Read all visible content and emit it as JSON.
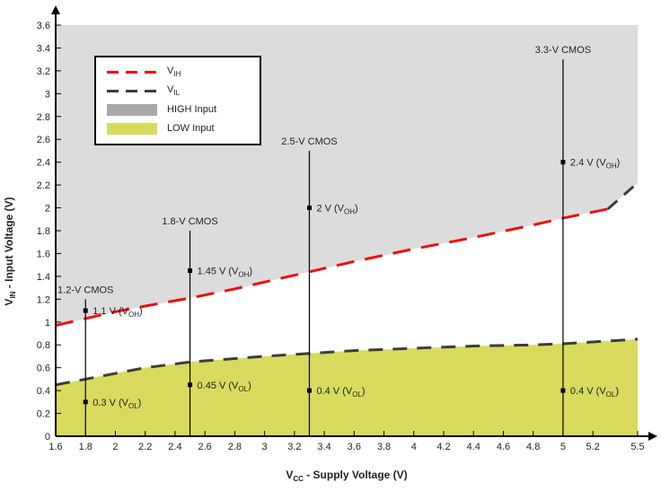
{
  "chart_data": {
    "type": "line",
    "xlabel": {
      "prefix": "V",
      "sub": "CC",
      "suffix": " - Supply Voltage (V)"
    },
    "ylabel": {
      "prefix": "V",
      "sub": "IN",
      "suffix": " - Input Voltage (V)"
    },
    "xlim": [
      1.6,
      5.5
    ],
    "ylim": [
      0,
      3.6
    ],
    "xtick_labels": [
      "1.6",
      "1.8",
      "2",
      "2.2",
      "2.4",
      "2.6",
      "2.8",
      "3",
      "3.2",
      "3.4",
      "3.6",
      "3.8",
      "4",
      "4.2",
      "4.4",
      "4.6",
      "4.8",
      "5",
      "5.2",
      "5.5"
    ],
    "ytick_labels": [
      "0",
      "0.2",
      "0.4",
      "0.6",
      "0.8",
      "1",
      "1.2",
      "1.4",
      "1.6",
      "1.8",
      "2",
      "2.2",
      "2.4",
      "2.6",
      "2.8",
      "3",
      "3.2",
      "3.4",
      "3.6"
    ],
    "series": [
      {
        "name": "VIH",
        "label": {
          "prefix": "V",
          "sub": "IH",
          "suffix": ""
        },
        "color": "#ee0f0f",
        "dash": "20 12",
        "points": [
          [
            1.6,
            0.97
          ],
          [
            1.8,
            1.03
          ],
          [
            2.0,
            1.09
          ],
          [
            2.2,
            1.14
          ],
          [
            2.5,
            1.21
          ],
          [
            2.8,
            1.29
          ],
          [
            3.0,
            1.35
          ],
          [
            3.3,
            1.44
          ],
          [
            3.6,
            1.53
          ],
          [
            4.0,
            1.64
          ],
          [
            4.4,
            1.74
          ],
          [
            4.8,
            1.85
          ],
          [
            5.0,
            1.91
          ],
          [
            5.3,
            1.99
          ]
        ]
      },
      {
        "name": "VIL",
        "label": {
          "prefix": "V",
          "sub": "IL",
          "suffix": ""
        },
        "color": "#3d3d3d",
        "dash": "16 11",
        "points": [
          [
            1.6,
            0.45
          ],
          [
            1.8,
            0.5
          ],
          [
            2.0,
            0.55
          ],
          [
            2.2,
            0.6
          ],
          [
            2.5,
            0.65
          ],
          [
            2.8,
            0.68
          ],
          [
            3.0,
            0.7
          ],
          [
            3.3,
            0.725
          ],
          [
            3.6,
            0.75
          ],
          [
            4.0,
            0.77
          ],
          [
            4.4,
            0.79
          ],
          [
            4.8,
            0.8
          ],
          [
            5.0,
            0.81
          ],
          [
            5.5,
            0.85
          ]
        ]
      }
    ],
    "vih_upper_extension": {
      "color": "#3d3d3d",
      "dash": "14 10",
      "points": [
        [
          5.3,
          1.99
        ],
        [
          5.5,
          2.22
        ]
      ]
    },
    "regions": {
      "high": {
        "fill": "#dcdcdc"
      },
      "low": {
        "fill": "#d8db5e"
      }
    },
    "cmos_markers": [
      {
        "x": 1.8,
        "top": 1.2,
        "name": "1.2-V CMOS",
        "voh": {
          "y": 1.1,
          "prefix": "1.1 V (V",
          "sub": "OH",
          "suffix": ")"
        },
        "vol": {
          "y": 0.3,
          "prefix": "0.3 V (V",
          "sub": "OL",
          "suffix": ")"
        }
      },
      {
        "x": 2.5,
        "top": 1.8,
        "name": "1.8-V CMOS",
        "voh": {
          "y": 1.45,
          "prefix": "1.45 V (V",
          "sub": "OH",
          "suffix": ")"
        },
        "vol": {
          "y": 0.45,
          "prefix": "0.45 V (V",
          "sub": "OL",
          "suffix": ")"
        }
      },
      {
        "x": 3.3,
        "top": 2.5,
        "name": "2.5-V CMOS",
        "voh": {
          "y": 2.0,
          "prefix": "2 V (V",
          "sub": "OH",
          "suffix": ")"
        },
        "vol": {
          "y": 0.4,
          "prefix": "0.4 V (V",
          "sub": "OL",
          "suffix": ")"
        }
      },
      {
        "x": 5.0,
        "top": 3.3,
        "name": "3.3-V CMOS",
        "voh": {
          "y": 2.4,
          "prefix": "2.4 V (V",
          "sub": "OH",
          "suffix": ")"
        },
        "vol": {
          "y": 0.4,
          "prefix": "0.4 V (V",
          "sub": "OL",
          "suffix": ")"
        }
      }
    ],
    "legend": {
      "entries": [
        {
          "type": "line",
          "color": "#ee0f0f",
          "prefix": "V",
          "sub": "IH",
          "suffix": ""
        },
        {
          "type": "line",
          "color": "#3d3d3d",
          "prefix": "V",
          "sub": "IL",
          "suffix": ""
        },
        {
          "type": "fill",
          "color": "#a8a8a8",
          "label": "HIGH Input"
        },
        {
          "type": "fill",
          "color": "#d8db5e",
          "label": "LOW Input"
        }
      ]
    },
    "axis_color": "#000000",
    "text_color": "#231f20"
  }
}
